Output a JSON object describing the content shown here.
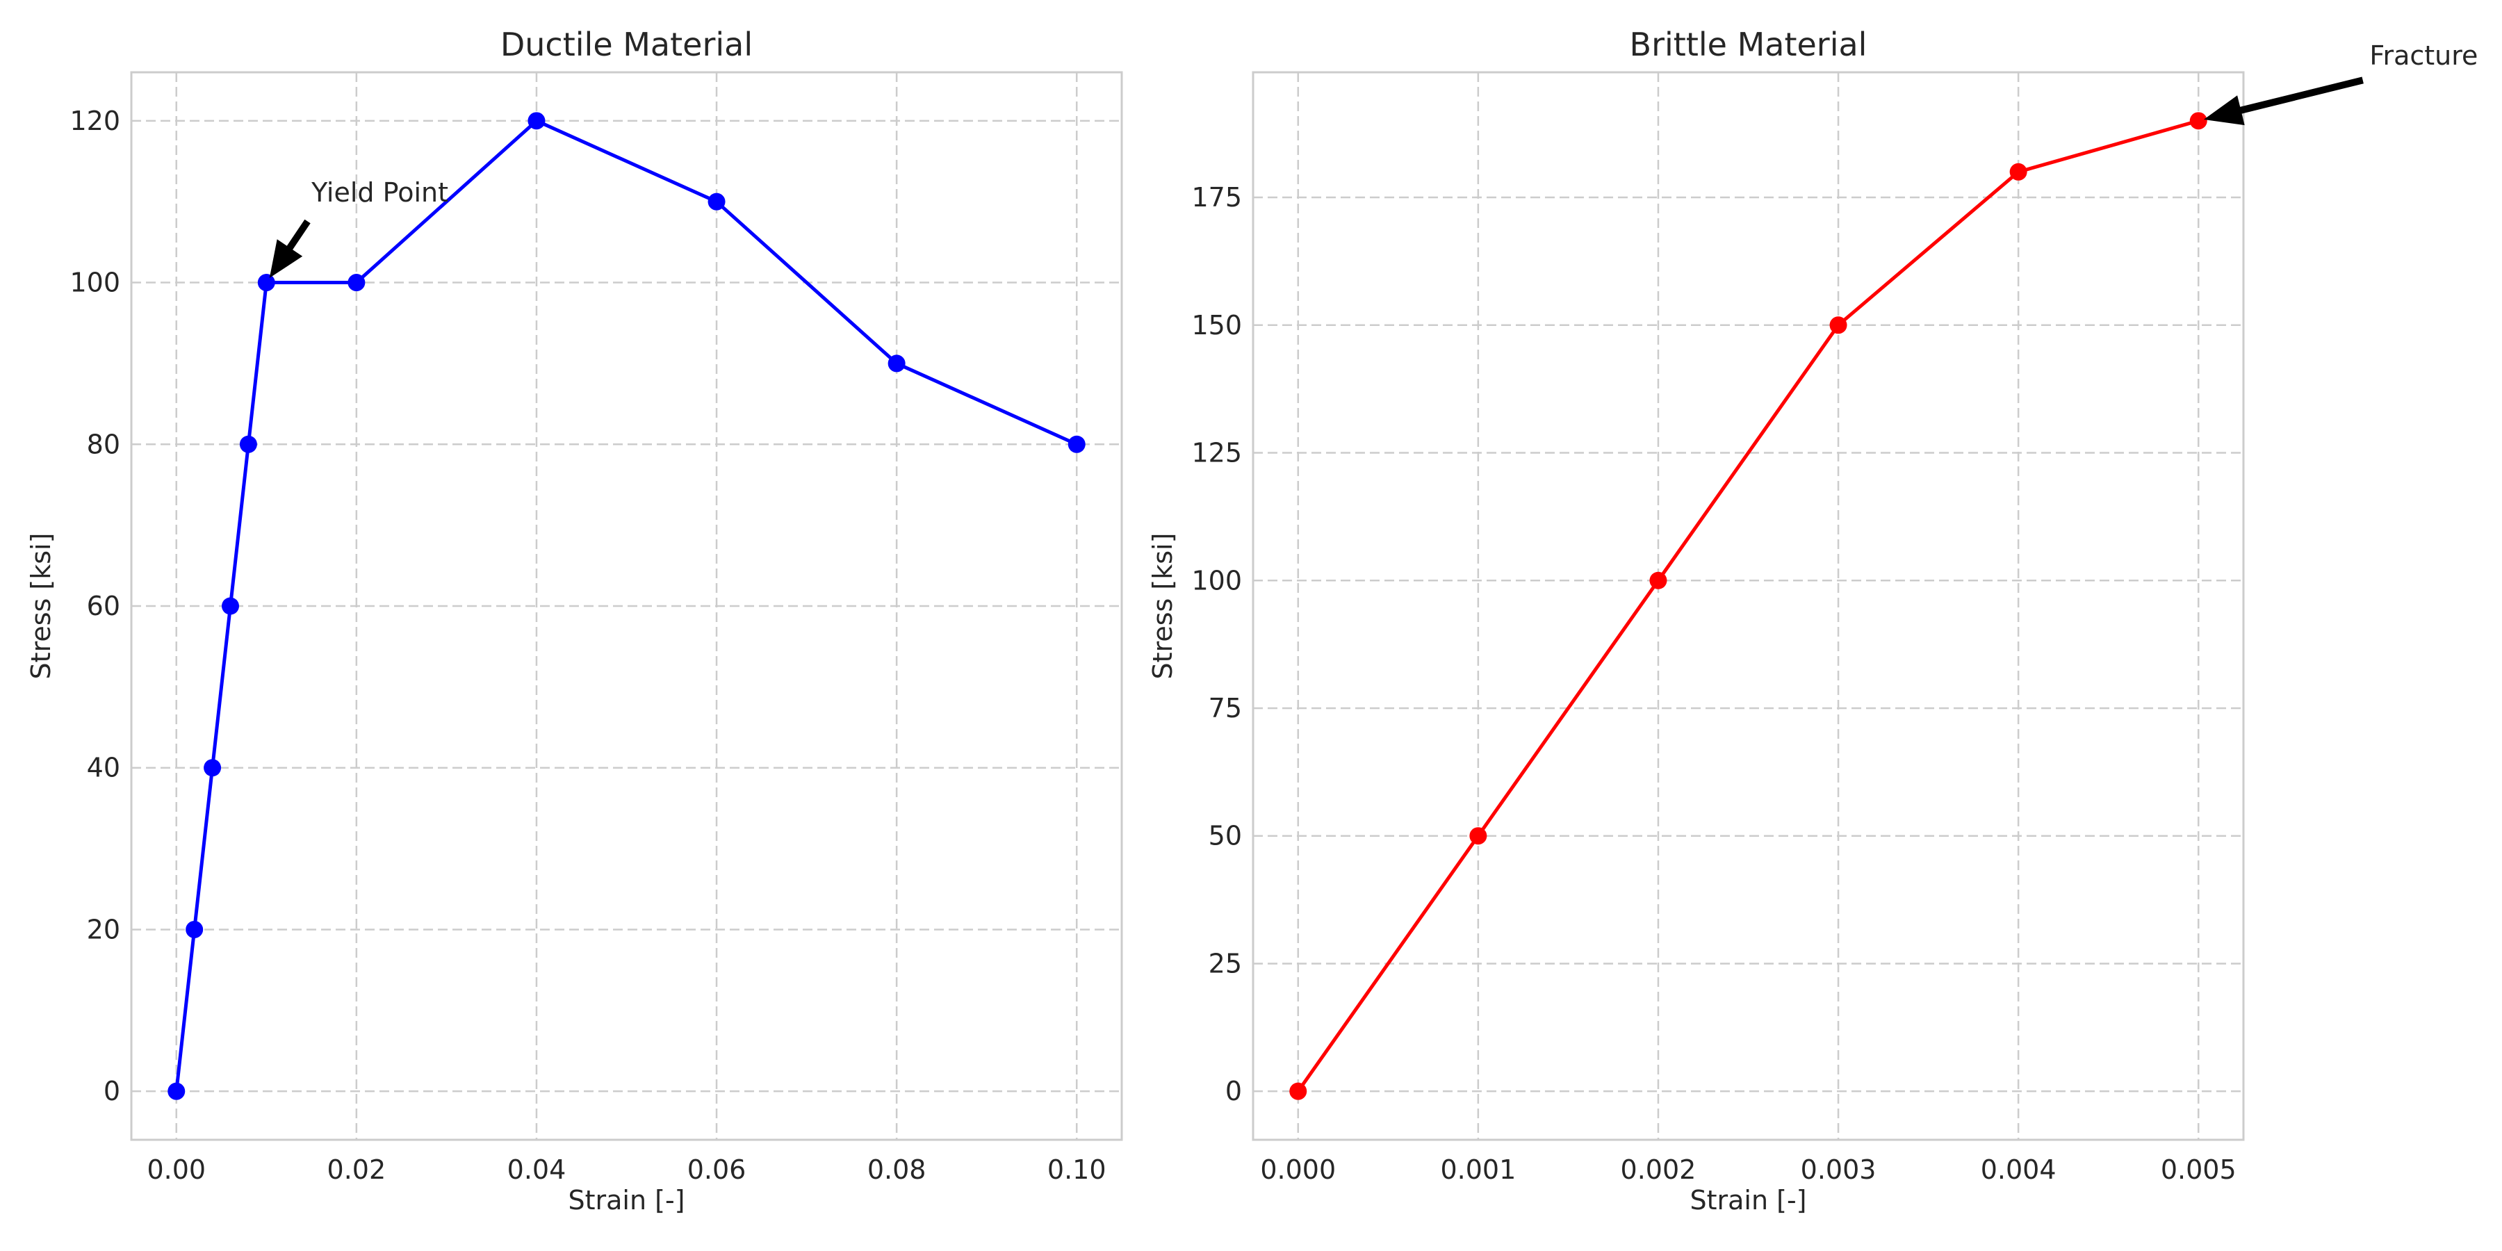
{
  "chart_data": [
    {
      "type": "line",
      "title": "Ductile Material",
      "xlabel": "Strain [-]",
      "ylabel": "Stress [ksi]",
      "xlim": [
        -0.005,
        0.105
      ],
      "ylim": [
        -6,
        126
      ],
      "grid": true,
      "xticks": [
        0.0,
        0.02,
        0.04,
        0.06,
        0.08,
        0.1
      ],
      "xtick_labels": [
        "0.00",
        "0.02",
        "0.04",
        "0.06",
        "0.08",
        "0.10"
      ],
      "yticks": [
        0,
        20,
        40,
        60,
        80,
        100,
        120
      ],
      "ytick_labels": [
        "0",
        "20",
        "40",
        "60",
        "80",
        "100",
        "120"
      ],
      "series": [
        {
          "color": "#0000ff",
          "marker": "circle",
          "x": [
            0.0,
            0.002,
            0.004,
            0.006,
            0.008,
            0.01,
            0.02,
            0.04,
            0.06,
            0.08,
            0.1
          ],
          "y": [
            0,
            20,
            40,
            60,
            80,
            100,
            100,
            120,
            110,
            90,
            80
          ]
        }
      ],
      "annotations": [
        {
          "text": "Yield Point",
          "point": [
            0.01,
            100
          ],
          "text_at": [
            0.015,
            110
          ]
        }
      ]
    },
    {
      "type": "line",
      "title": "Brittle Material",
      "xlabel": "Strain [-]",
      "ylabel": "Stress [ksi]",
      "xlim": [
        -0.00025,
        0.00525
      ],
      "ylim": [
        -9.5,
        199.5
      ],
      "grid": true,
      "xticks": [
        0.0,
        0.001,
        0.002,
        0.003,
        0.004,
        0.005
      ],
      "xtick_labels": [
        "0.000",
        "0.001",
        "0.002",
        "0.003",
        "0.004",
        "0.005"
      ],
      "yticks": [
        0,
        25,
        50,
        75,
        100,
        125,
        150,
        175
      ],
      "ytick_labels": [
        "0",
        "25",
        "50",
        "75",
        "100",
        "125",
        "150",
        "175"
      ],
      "series": [
        {
          "color": "#ff0000",
          "marker": "circle",
          "x": [
            0.0,
            0.001,
            0.002,
            0.003,
            0.004,
            0.005
          ],
          "y": [
            0,
            50,
            100,
            150,
            180,
            190
          ]
        }
      ],
      "annotations": [
        {
          "text": "Fracture",
          "point": [
            0.005,
            190
          ],
          "text_at": [
            0.00595,
            201
          ]
        }
      ]
    }
  ]
}
